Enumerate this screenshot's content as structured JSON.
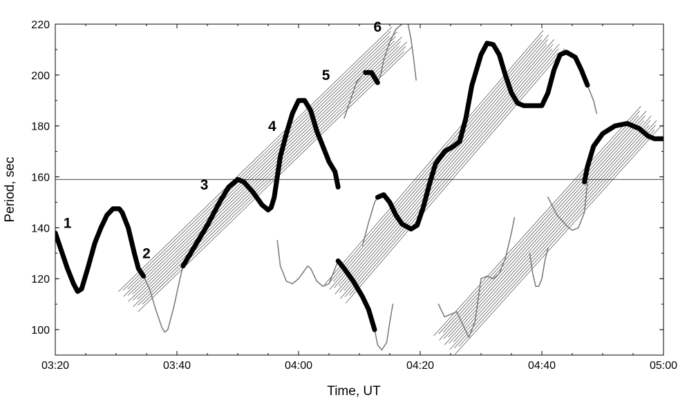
{
  "chart_data": {
    "type": "line",
    "title": "",
    "xlabel": "Time, UT",
    "ylabel": "Period, sec",
    "x_unit": "time of day, HH:MM",
    "xlim": [
      "03:20",
      "05:00"
    ],
    "ylim": [
      90,
      220
    ],
    "x_ticks": [
      "03:20",
      "03:40",
      "04:00",
      "04:20",
      "04:40",
      "05:00"
    ],
    "y_ticks": [
      100,
      120,
      140,
      160,
      180,
      200,
      220
    ],
    "grid": false,
    "reference_line": {
      "y": 159
    },
    "segment_labels": [
      {
        "text": "1",
        "x": "03:22:00",
        "y": 140
      },
      {
        "text": "2",
        "x": "03:35:00",
        "y": 128
      },
      {
        "text": "3",
        "x": "03:44:30",
        "y": 155
      },
      {
        "text": "4",
        "x": "03:55:40",
        "y": 178
      },
      {
        "text": "5",
        "x": "04:04:30",
        "y": 198
      },
      {
        "text": "6",
        "x": "04:13:00",
        "y": 217
      }
    ],
    "series": [
      {
        "style": "thick",
        "points": [
          [
            "03:20:00",
            138
          ],
          [
            "03:21:00",
            131
          ],
          [
            "03:22:00",
            124
          ],
          [
            "03:23:00",
            118
          ],
          [
            "03:23:40",
            115
          ],
          [
            "03:24:20",
            116
          ],
          [
            "03:25:20",
            124
          ],
          [
            "03:26:30",
            134
          ],
          [
            "03:27:30",
            140
          ],
          [
            "03:28:30",
            145
          ],
          [
            "03:29:30",
            147.5
          ],
          [
            "03:30:30",
            147.5
          ],
          [
            "03:31:00",
            146
          ],
          [
            "03:32:00",
            140
          ],
          [
            "03:33:00",
            130
          ],
          [
            "03:33:40",
            124
          ],
          [
            "03:34:30",
            121
          ]
        ]
      },
      {
        "style": "thick",
        "points": [
          [
            "03:41:00",
            125
          ],
          [
            "03:43:00",
            133
          ],
          [
            "03:45:00",
            141
          ],
          [
            "03:47:00",
            150
          ],
          [
            "03:48:30",
            156
          ],
          [
            "03:50:00",
            159
          ],
          [
            "03:51:00",
            158
          ],
          [
            "03:52:30",
            154
          ],
          [
            "03:54:00",
            149
          ],
          [
            "03:55:00",
            147
          ],
          [
            "03:55:30",
            148
          ],
          [
            "03:56:00",
            152
          ],
          [
            "03:57:00",
            168
          ],
          [
            "03:58:00",
            177
          ],
          [
            "03:59:00",
            185
          ],
          [
            "04:00:00",
            190
          ],
          [
            "04:01:00",
            190
          ],
          [
            "04:02:00",
            186
          ],
          [
            "04:03:00",
            178
          ],
          [
            "04:04:00",
            172
          ],
          [
            "04:05:00",
            166
          ],
          [
            "04:06:00",
            162
          ],
          [
            "04:06:30",
            156
          ]
        ]
      },
      {
        "style": "thick",
        "points": [
          [
            "04:06:30",
            127
          ],
          [
            "04:07:30",
            124
          ],
          [
            "04:09:00",
            119
          ],
          [
            "04:10:30",
            113
          ],
          [
            "04:11:30",
            108
          ],
          [
            "04:12:30",
            100
          ]
        ]
      },
      {
        "style": "thick",
        "points": [
          [
            "04:11:00",
            201
          ],
          [
            "04:12:00",
            201
          ],
          [
            "04:13:00",
            197
          ]
        ]
      },
      {
        "style": "thick",
        "points": [
          [
            "04:13:00",
            152
          ],
          [
            "04:14:00",
            153
          ],
          [
            "04:15:00",
            150
          ],
          [
            "04:16:00",
            145
          ],
          [
            "04:17:00",
            141.5
          ],
          [
            "04:18:30",
            139.5
          ],
          [
            "04:19:30",
            141
          ],
          [
            "04:20:30",
            148
          ],
          [
            "04:21:30",
            157
          ],
          [
            "04:22:30",
            165
          ],
          [
            "04:24:00",
            170
          ],
          [
            "04:25:30",
            172
          ],
          [
            "04:26:30",
            174
          ],
          [
            "04:27:30",
            183
          ],
          [
            "04:28:30",
            196
          ],
          [
            "04:30:00",
            208
          ],
          [
            "04:31:00",
            212.5
          ],
          [
            "04:32:00",
            212
          ],
          [
            "04:33:00",
            208
          ],
          [
            "04:34:00",
            200
          ],
          [
            "04:35:00",
            193
          ],
          [
            "04:36:00",
            189
          ],
          [
            "04:37:00",
            188
          ],
          [
            "04:38:30",
            188
          ],
          [
            "04:40:00",
            188
          ],
          [
            "04:41:00",
            193
          ],
          [
            "04:42:00",
            202
          ],
          [
            "04:43:00",
            208
          ],
          [
            "04:44:00",
            209
          ],
          [
            "04:45:30",
            207
          ],
          [
            "04:46:30",
            202
          ],
          [
            "04:47:30",
            196
          ]
        ]
      },
      {
        "style": "thick",
        "points": [
          [
            "04:47:00",
            158
          ],
          [
            "04:47:30",
            164
          ],
          [
            "04:48:30",
            172
          ],
          [
            "04:50:00",
            177
          ],
          [
            "04:52:00",
            180
          ],
          [
            "04:54:00",
            181
          ],
          [
            "04:56:00",
            179
          ],
          [
            "04:57:30",
            176
          ],
          [
            "04:58:30",
            175
          ],
          [
            "05:00:00",
            175
          ]
        ]
      },
      {
        "style": "thin",
        "points": [
          [
            "03:34:30",
            121
          ],
          [
            "03:35:30",
            116
          ],
          [
            "03:36:30",
            108
          ],
          [
            "03:37:30",
            101
          ],
          [
            "03:38:00",
            99
          ],
          [
            "03:38:30",
            100
          ],
          [
            "03:39:30",
            109
          ],
          [
            "03:40:30",
            120
          ],
          [
            "03:41:00",
            125
          ]
        ]
      },
      {
        "style": "thin",
        "points": [
          [
            "03:56:30",
            135
          ],
          [
            "03:57:00",
            125
          ],
          [
            "03:58:00",
            119
          ],
          [
            "03:59:00",
            118
          ],
          [
            "04:00:00",
            120
          ],
          [
            "04:01:30",
            125
          ],
          [
            "04:02:00",
            124
          ],
          [
            "04:03:00",
            119
          ],
          [
            "04:04:00",
            117
          ],
          [
            "04:05:00",
            118
          ],
          [
            "04:06:00",
            124
          ],
          [
            "04:06:30",
            127
          ]
        ]
      },
      {
        "style": "thin",
        "points": [
          [
            "04:12:30",
            100
          ],
          [
            "04:13:00",
            94
          ],
          [
            "04:13:40",
            92
          ],
          [
            "04:14:30",
            95
          ],
          [
            "04:15:00",
            103
          ],
          [
            "04:15:30",
            110
          ]
        ]
      },
      {
        "style": "thin",
        "points": [
          [
            "04:10:30",
            133
          ],
          [
            "04:11:30",
            142
          ],
          [
            "04:12:30",
            150
          ],
          [
            "04:13:00",
            152
          ]
        ]
      },
      {
        "style": "thin",
        "points": [
          [
            "04:07:30",
            183
          ],
          [
            "04:08:30",
            190
          ],
          [
            "04:09:30",
            197
          ],
          [
            "04:10:30",
            200
          ],
          [
            "04:11:00",
            201
          ]
        ]
      },
      {
        "style": "thin",
        "points": [
          [
            "04:13:00",
            197
          ],
          [
            "04:13:30",
            200
          ],
          [
            "04:14:00",
            206
          ],
          [
            "04:15:00",
            213
          ],
          [
            "04:16:00",
            218
          ],
          [
            "04:17:00",
            220
          ]
        ]
      },
      {
        "style": "thin",
        "points": [
          [
            "04:18:00",
            220
          ],
          [
            "04:18:30",
            214
          ],
          [
            "04:19:00",
            205
          ],
          [
            "04:19:20",
            198
          ]
        ]
      },
      {
        "style": "thin",
        "points": [
          [
            "04:23:00",
            110
          ],
          [
            "04:24:00",
            105
          ],
          [
            "04:25:00",
            106
          ],
          [
            "04:26:00",
            107
          ],
          [
            "04:27:00",
            102
          ],
          [
            "04:28:00",
            97
          ],
          [
            "04:29:00",
            103
          ],
          [
            "04:30:00",
            120
          ],
          [
            "04:31:00",
            121
          ],
          [
            "04:32:00",
            120
          ],
          [
            "04:33:00",
            122
          ],
          [
            "04:34:00",
            128
          ],
          [
            "04:35:00",
            138
          ],
          [
            "04:35:30",
            144
          ]
        ]
      },
      {
        "style": "thin",
        "points": [
          [
            "04:38:00",
            130
          ],
          [
            "04:38:30",
            122
          ],
          [
            "04:39:00",
            117
          ],
          [
            "04:39:30",
            117
          ],
          [
            "04:40:00",
            120
          ],
          [
            "04:40:30",
            127
          ],
          [
            "04:41:00",
            132
          ]
        ]
      },
      {
        "style": "thin",
        "points": [
          [
            "04:41:00",
            152
          ],
          [
            "04:42:30",
            145
          ],
          [
            "04:44:00",
            141
          ],
          [
            "04:45:00",
            139
          ],
          [
            "04:46:00",
            140
          ],
          [
            "04:47:00",
            146
          ],
          [
            "04:47:30",
            158
          ]
        ]
      },
      {
        "style": "thin",
        "points": [
          [
            "04:47:30",
            196
          ],
          [
            "04:48:30",
            190
          ],
          [
            "04:49:00",
            185
          ]
        ]
      }
    ],
    "bands": [
      {
        "from": [
          "03:32:00",
          111
        ],
        "to": [
          "04:17:00",
          215
        ]
      },
      {
        "from": [
          "04:06:00",
          114
        ],
        "to": [
          "04:42:00",
          214
        ]
      },
      {
        "from": [
          "04:24:00",
          94
        ],
        "to": [
          "04:58:00",
          184
        ]
      }
    ]
  }
}
